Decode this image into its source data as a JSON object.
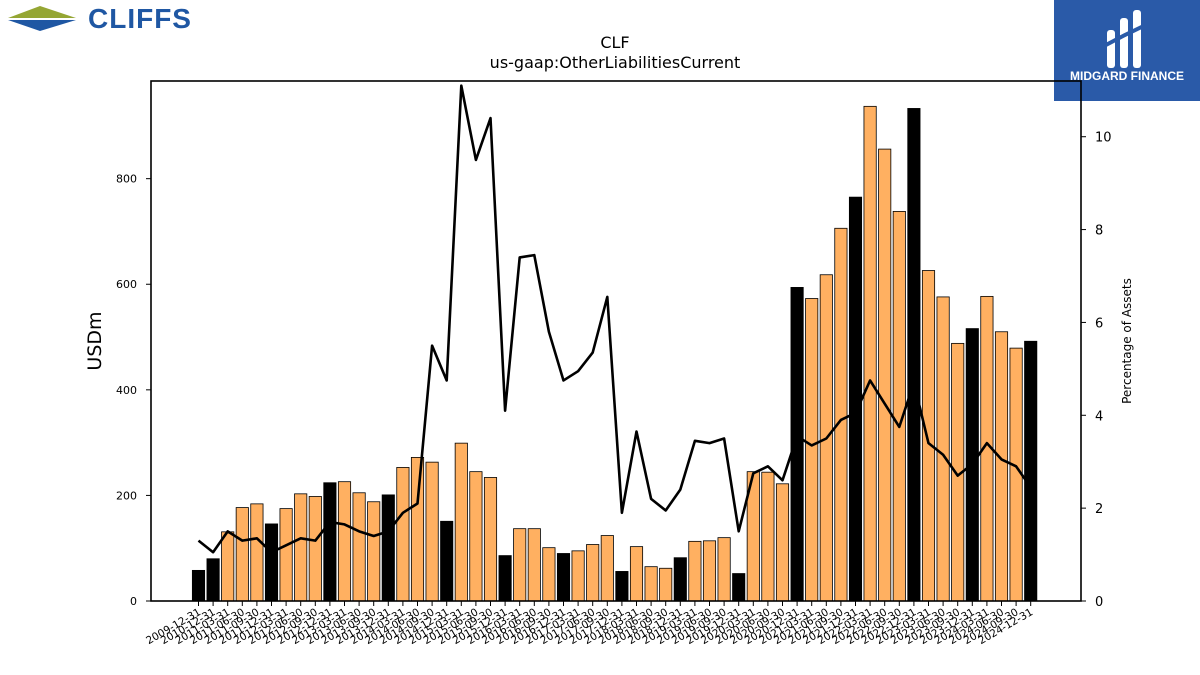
{
  "brand": {
    "company_name": "CLIFFS",
    "partner_name": "MIDGARD FINANCE"
  },
  "colors": {
    "bar_orange": "#ffb061",
    "bar_black": "#000000",
    "line": "#000000",
    "logo_blue": "#1f57a3",
    "logo_green": "#95a633",
    "partner_bg": "#2a5aa8"
  },
  "chart_data": {
    "type": "bar",
    "title": "CLF",
    "subtitle": "us-gaap:OtherLiabilitiesCurrent",
    "ylabel": "USDm",
    "y2label": "Percentage of Assets",
    "ylim": [
      0,
      985
    ],
    "y2lim": [
      0,
      11.2
    ],
    "yticks": [
      0,
      200,
      400,
      600,
      800
    ],
    "y2ticks": [
      0,
      2,
      4,
      6,
      8,
      10
    ],
    "grid": false,
    "categories": [
      "2009-12-31",
      "2010-12-31",
      "2011-03-31",
      "2011-06-30",
      "2011-09-30",
      "2011-12-31",
      "2012-03-31",
      "2012-06-30",
      "2012-09-30",
      "2012-12-31",
      "2013-03-31",
      "2013-06-30",
      "2013-09-30",
      "2013-12-31",
      "2014-03-31",
      "2014-06-30",
      "2014-09-30",
      "2014-12-31",
      "2015-03-31",
      "2015-06-30",
      "2015-09-30",
      "2015-12-31",
      "2016-03-31",
      "2016-06-30",
      "2016-09-30",
      "2016-12-31",
      "2017-03-31",
      "2017-06-30",
      "2017-09-30",
      "2017-12-31",
      "2018-03-31",
      "2018-06-30",
      "2018-09-30",
      "2018-12-31",
      "2019-03-31",
      "2019-06-30",
      "2019-09-30",
      "2019-12-31",
      "2020-03-31",
      "2020-06-30",
      "2020-09-30",
      "2020-12-31",
      "2021-03-31",
      "2021-06-30",
      "2021-09-30",
      "2021-12-31",
      "2022-03-31",
      "2022-06-30",
      "2022-09-30",
      "2022-12-31",
      "2023-03-31",
      "2023-06-30",
      "2023-09-30",
      "2023-12-31",
      "2024-03-31",
      "2024-06-30",
      "2024-09-30",
      "2024-12-31"
    ],
    "series": [
      {
        "values": [
          58,
          80,
          131,
          177,
          184,
          146,
          175,
          203,
          198,
          224,
          226,
          205,
          188,
          201,
          253,
          272,
          263,
          151,
          299,
          245,
          234,
          86,
          137,
          137,
          101,
          90,
          95,
          107,
          124,
          56,
          103,
          65,
          62,
          82,
          113,
          114,
          120,
          52,
          245,
          244,
          222,
          594,
          573,
          618,
          706,
          765,
          937,
          856,
          738,
          933,
          626,
          576,
          488,
          516,
          577,
          510,
          479,
          492
        ],
        "is_q4": [
          true,
          true,
          false,
          false,
          false,
          true,
          false,
          false,
          false,
          true,
          false,
          false,
          false,
          true,
          false,
          false,
          false,
          true,
          false,
          false,
          false,
          true,
          false,
          false,
          false,
          true,
          false,
          false,
          false,
          true,
          false,
          false,
          false,
          true,
          false,
          false,
          false,
          true,
          false,
          false,
          false,
          true,
          false,
          false,
          false,
          true,
          false,
          false,
          false,
          true,
          false,
          false,
          false,
          true,
          false,
          false,
          false,
          true
        ]
      },
      {
        "axis": "right",
        "values": [
          1.3,
          1.05,
          1.5,
          1.3,
          1.35,
          1.05,
          1.2,
          1.35,
          1.3,
          1.7,
          1.65,
          1.5,
          1.4,
          1.5,
          1.9,
          2.1,
          5.5,
          4.75,
          11.1,
          9.5,
          10.4,
          4.1,
          7.4,
          7.45,
          5.8,
          4.75,
          4.95,
          5.35,
          6.55,
          1.9,
          3.65,
          2.2,
          1.95,
          2.4,
          3.45,
          3.4,
          3.5,
          1.5,
          2.75,
          2.9,
          2.6,
          3.55,
          3.35,
          3.5,
          3.9,
          4.05,
          4.75,
          4.25,
          3.75,
          4.7,
          3.4,
          3.15,
          2.7,
          2.95,
          3.4,
          3.05,
          2.9,
          2.45
        ]
      }
    ]
  }
}
